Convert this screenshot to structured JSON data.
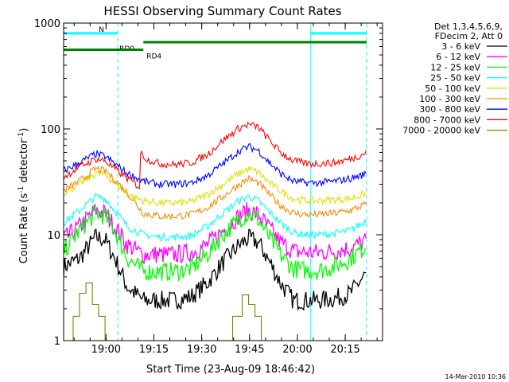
{
  "chart_data": {
    "type": "line",
    "title": "HESSI Observing Summary Count Rates",
    "xlabel": "Start Time (23-Aug-09 18:46:42)",
    "ylabel_main": "Count Rate (s",
    "ylabel_sup1": "-1",
    "ylabel_mid": " detector",
    "ylabel_sup2": "-1",
    "ylabel_end": ")",
    "y_scale": "log",
    "ylim": [
      1,
      1000
    ],
    "xlim_minutes": [
      0,
      100
    ],
    "x_ticks": [
      {
        "label": "19:00",
        "minutes": 13.3
      },
      {
        "label": "19:15",
        "minutes": 28.3
      },
      {
        "label": "19:30",
        "minutes": 43.3
      },
      {
        "label": "19:45",
        "minutes": 58.3
      },
      {
        "label": "20:00",
        "minutes": 73.3
      },
      {
        "label": "20:15",
        "minutes": 88.3
      }
    ],
    "y_ticks": [
      {
        "label": "1",
        "value": 1
      },
      {
        "label": "10",
        "value": 10
      },
      {
        "label": "100",
        "value": 100
      },
      {
        "label": "1000",
        "value": 1000
      }
    ],
    "legend_header": [
      "Det 1,3,4,5,6,9,",
      "FDecim 2, Att 0"
    ],
    "series": [
      {
        "name": "3 - 6 keV",
        "color": "#000000",
        "points": [
          [
            0,
            5
          ],
          [
            5,
            6
          ],
          [
            10,
            9.5
          ],
          [
            13,
            9
          ],
          [
            16,
            6
          ],
          [
            20,
            3.2
          ],
          [
            25,
            2.4
          ],
          [
            30,
            2.4
          ],
          [
            35,
            2.4
          ],
          [
            40,
            2.6
          ],
          [
            45,
            3.5
          ],
          [
            50,
            5.5
          ],
          [
            55,
            8
          ],
          [
            58,
            9.2
          ],
          [
            61,
            8.5
          ],
          [
            64,
            6
          ],
          [
            68,
            3.5
          ],
          [
            72,
            2.4
          ],
          [
            76,
            2.4
          ],
          [
            80,
            2.4
          ],
          [
            85,
            2.5
          ],
          [
            90,
            2.8
          ],
          [
            94,
            4
          ],
          [
            95,
            4.2
          ]
        ]
      },
      {
        "name": "6 - 12 keV",
        "color": "#ff00ff",
        "points": [
          [
            0,
            9
          ],
          [
            5,
            12
          ],
          [
            10,
            17
          ],
          [
            13,
            16
          ],
          [
            16,
            12
          ],
          [
            20,
            8
          ],
          [
            25,
            6.5
          ],
          [
            30,
            6.5
          ],
          [
            35,
            6.5
          ],
          [
            40,
            6.8
          ],
          [
            45,
            8
          ],
          [
            50,
            11
          ],
          [
            55,
            15
          ],
          [
            58,
            17
          ],
          [
            61,
            15.5
          ],
          [
            64,
            12
          ],
          [
            68,
            8.5
          ],
          [
            72,
            7
          ],
          [
            76,
            6.8
          ],
          [
            80,
            6.8
          ],
          [
            85,
            7
          ],
          [
            90,
            7.5
          ],
          [
            94,
            8.5
          ],
          [
            95,
            9
          ]
        ]
      },
      {
        "name": "12 - 25 keV",
        "color": "#00ff00",
        "points": [
          [
            0,
            7
          ],
          [
            5,
            11
          ],
          [
            10,
            16
          ],
          [
            13,
            15
          ],
          [
            16,
            11
          ],
          [
            20,
            6
          ],
          [
            25,
            4.5
          ],
          [
            30,
            4.5
          ],
          [
            35,
            4.5
          ],
          [
            40,
            4.8
          ],
          [
            45,
            6.5
          ],
          [
            50,
            10
          ],
          [
            55,
            14
          ],
          [
            58,
            16
          ],
          [
            61,
            14
          ],
          [
            64,
            10
          ],
          [
            68,
            6.5
          ],
          [
            72,
            4.8
          ],
          [
            76,
            4.6
          ],
          [
            80,
            4.6
          ],
          [
            85,
            5
          ],
          [
            90,
            6
          ],
          [
            94,
            7.5
          ],
          [
            95,
            8
          ]
        ]
      },
      {
        "name": "25 - 50 keV",
        "color": "#00ffff",
        "points": [
          [
            0,
            13
          ],
          [
            5,
            17
          ],
          [
            10,
            23
          ],
          [
            13,
            22
          ],
          [
            16,
            17
          ],
          [
            20,
            12
          ],
          [
            25,
            10
          ],
          [
            30,
            9.5
          ],
          [
            35,
            9.5
          ],
          [
            40,
            9.8
          ],
          [
            45,
            12
          ],
          [
            50,
            16
          ],
          [
            55,
            21
          ],
          [
            58,
            23
          ],
          [
            61,
            21
          ],
          [
            64,
            17
          ],
          [
            68,
            13
          ],
          [
            72,
            10.5
          ],
          [
            76,
            10
          ],
          [
            80,
            10
          ],
          [
            85,
            10.3
          ],
          [
            90,
            11
          ],
          [
            94,
            13
          ],
          [
            95,
            14
          ]
        ]
      },
      {
        "name": "50 - 100 keV",
        "color": "#e0e000",
        "points": [
          [
            0,
            25
          ],
          [
            5,
            30
          ],
          [
            10,
            38
          ],
          [
            13,
            37
          ],
          [
            16,
            31
          ],
          [
            20,
            24
          ],
          [
            25,
            21
          ],
          [
            30,
            20
          ],
          [
            35,
            20
          ],
          [
            40,
            20.5
          ],
          [
            45,
            24
          ],
          [
            50,
            30
          ],
          [
            55,
            38
          ],
          [
            58,
            42
          ],
          [
            61,
            39
          ],
          [
            64,
            32
          ],
          [
            68,
            26
          ],
          [
            72,
            22
          ],
          [
            76,
            21
          ],
          [
            80,
            21
          ],
          [
            85,
            21.5
          ],
          [
            90,
            22
          ],
          [
            94,
            24
          ],
          [
            95,
            25
          ]
        ]
      },
      {
        "name": "100 - 300 keV",
        "color": "#ff8800",
        "points": [
          [
            0,
            26
          ],
          [
            5,
            32
          ],
          [
            10,
            42
          ],
          [
            13,
            40
          ],
          [
            16,
            33
          ],
          [
            20,
            25
          ],
          [
            25,
            16
          ],
          [
            30,
            15
          ],
          [
            35,
            15
          ],
          [
            40,
            15.5
          ],
          [
            45,
            18
          ],
          [
            50,
            23
          ],
          [
            55,
            30
          ],
          [
            58,
            34
          ],
          [
            61,
            31
          ],
          [
            64,
            25
          ],
          [
            68,
            19
          ],
          [
            72,
            16
          ],
          [
            76,
            15.5
          ],
          [
            80,
            15.5
          ],
          [
            85,
            16
          ],
          [
            90,
            17
          ],
          [
            94,
            19
          ],
          [
            95,
            20
          ]
        ]
      },
      {
        "name": "300 - 800 keV",
        "color": "#0000ff",
        "points": [
          [
            0,
            40
          ],
          [
            5,
            48
          ],
          [
            10,
            58
          ],
          [
            13,
            55
          ],
          [
            16,
            47
          ],
          [
            20,
            38
          ],
          [
            25,
            32
          ],
          [
            30,
            30
          ],
          [
            35,
            30
          ],
          [
            40,
            31
          ],
          [
            45,
            36
          ],
          [
            50,
            47
          ],
          [
            55,
            62
          ],
          [
            58,
            68
          ],
          [
            61,
            63
          ],
          [
            64,
            50
          ],
          [
            68,
            38
          ],
          [
            72,
            32
          ],
          [
            76,
            31
          ],
          [
            80,
            31
          ],
          [
            85,
            32
          ],
          [
            90,
            34
          ],
          [
            94,
            37
          ],
          [
            95,
            38
          ]
        ]
      },
      {
        "name": "800 - 7000 keV",
        "color": "#ff0000",
        "points": [
          [
            0,
            35
          ],
          [
            5,
            44
          ],
          [
            10,
            52
          ],
          [
            13,
            50
          ],
          [
            16,
            42
          ],
          [
            20,
            34
          ],
          [
            24,
            28
          ],
          [
            24.1,
            60
          ],
          [
            26,
            52
          ],
          [
            30,
            47
          ],
          [
            35,
            46
          ],
          [
            40,
            48
          ],
          [
            45,
            57
          ],
          [
            50,
            78
          ],
          [
            55,
            102
          ],
          [
            58,
            110
          ],
          [
            61,
            104
          ],
          [
            64,
            82
          ],
          [
            68,
            60
          ],
          [
            72,
            50
          ],
          [
            76,
            47
          ],
          [
            80,
            47
          ],
          [
            85,
            48
          ],
          [
            90,
            52
          ],
          [
            94,
            58
          ],
          [
            95,
            62
          ]
        ]
      },
      {
        "name": "7000 - 20000 keV",
        "color": "#808000",
        "points": [
          [
            3,
            1
          ],
          [
            3,
            1.7
          ],
          [
            5,
            1.7
          ],
          [
            5,
            2.8
          ],
          [
            7,
            2.8
          ],
          [
            7,
            3.5
          ],
          [
            9,
            3.5
          ],
          [
            9,
            2.2
          ],
          [
            11,
            2.2
          ],
          [
            11,
            1.7
          ],
          [
            13,
            1.7
          ],
          [
            13,
            1
          ],
          [
            53,
            1
          ],
          [
            53,
            1.7
          ],
          [
            56,
            1.7
          ],
          [
            56,
            2.7
          ],
          [
            58,
            2.7
          ],
          [
            58,
            2.2
          ],
          [
            60,
            2.2
          ],
          [
            60,
            1.7
          ],
          [
            62,
            1.7
          ],
          [
            62,
            1
          ]
        ]
      }
    ],
    "state_bars": [
      {
        "label": "N",
        "color": "#00ffff",
        "value": 800,
        "ranges": [
          [
            0,
            17
          ],
          [
            77.5,
            95
          ]
        ]
      },
      {
        "label": "RD0",
        "color": "#008000",
        "value": 660,
        "ranges": [
          [
            25,
            95
          ]
        ]
      },
      {
        "label": "RD4",
        "color": "#008000",
        "value": 560,
        "ranges": [
          [
            0,
            25
          ]
        ]
      }
    ],
    "vertical_lines": [
      {
        "color": "#00ffff",
        "style": "solid",
        "minutes": 0
      },
      {
        "color": "#00ffff",
        "style": "dashed",
        "minutes": 17
      },
      {
        "color": "#00ffff",
        "style": "solid",
        "minutes": 77.5
      },
      {
        "color": "#00ffff",
        "style": "dashed",
        "minutes": 95
      }
    ],
    "timestamp": "14-Mar-2010 10:36"
  }
}
